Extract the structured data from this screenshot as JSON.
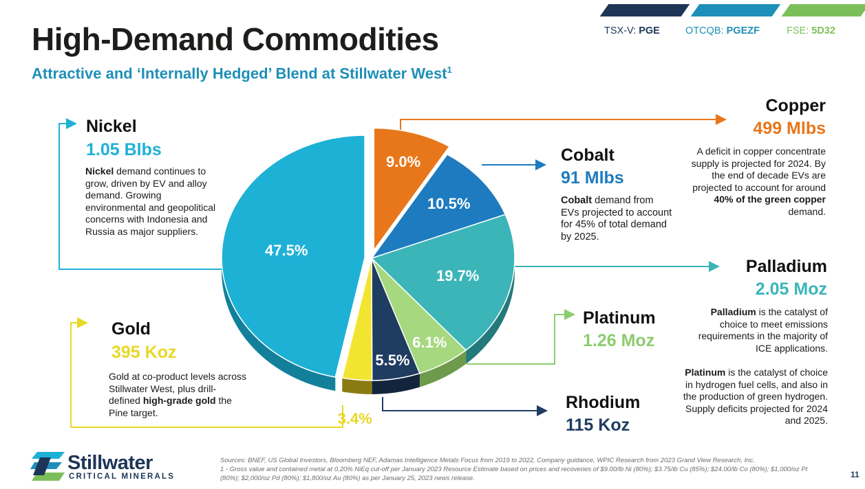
{
  "header": {
    "title": "High-Demand Commodities",
    "subtitle": "Attractive and ‘Internally Hedged’ Blend at Stillwater West",
    "subtitle_note": "1",
    "tickers": [
      {
        "exchange": "TSX-V:",
        "symbol": "PGE",
        "color": "#1d3557"
      },
      {
        "exchange": "OTCQB:",
        "symbol": "PGEZF",
        "color": "#1e8fb8"
      },
      {
        "exchange": "FSE:",
        "symbol": "5D32",
        "color": "#7cbf5a"
      }
    ]
  },
  "commodities": {
    "nickel": {
      "name": "Nickel",
      "value": "1.05 Blbs",
      "color": "#1eb1d6",
      "desc_bold": "Nickel",
      "desc": " demand continues to grow, driven by EV and alloy demand. Growing environmental and geopolitical concerns with Indonesia and Russia as major suppliers."
    },
    "copper": {
      "name": "Copper",
      "value": "499 Mlbs",
      "color": "#e8761a",
      "desc": "A deficit in copper concentrate supply is projected for 2024. By the end of decade EVs are projected to account for around ",
      "desc_bold": "40% of the green copper",
      "desc_end": " demand."
    },
    "cobalt": {
      "name": "Cobalt",
      "value": "91 Mlbs",
      "color": "#1e7bbf",
      "desc_bold": "Cobalt",
      "desc": " demand from EVs projected to account for 45% of total demand by 2025."
    },
    "palladium": {
      "name": "Palladium",
      "value": "2.05 Moz",
      "color": "#3bb5b8",
      "desc_bold": "Palladium",
      "desc": " is the catalyst of choice to meet emissions requirements in the majority of ICE applications."
    },
    "platinum": {
      "name": "Platinum",
      "value": "1.26 Moz",
      "color": "#8ccc6e",
      "desc_bold": "Platinum",
      "desc": " is the catalyst of choice in hydrogen fuel cells, and also in the production of green hydrogen. Supply deficits projected for 2024 and 2025."
    },
    "rhodium": {
      "name": "Rhodium",
      "value": "115 Koz",
      "color": "#1f3c61"
    },
    "gold": {
      "name": "Gold",
      "value": "395 Koz",
      "color": "#e8d826",
      "desc": "Gold at co-product levels across Stillwater West, plus drill-defined ",
      "desc_bold": "high-grade gold",
      "desc_end": " the Pine target."
    }
  },
  "chart_data": {
    "type": "pie",
    "title": "",
    "start_angle_deg": 0,
    "slices": [
      {
        "name": "Copper",
        "value": 9.0,
        "label": "9.0%",
        "color": "#e8761a",
        "side": "#9c4d10"
      },
      {
        "name": "Cobalt",
        "value": 10.5,
        "label": "10.5%",
        "color": "#1e7bbf",
        "side": "#134f7c"
      },
      {
        "name": "Palladium",
        "value": 19.7,
        "label": "19.7%",
        "color": "#3bb5b8",
        "side": "#24797b"
      },
      {
        "name": "Platinum",
        "value": 6.1,
        "label": "6.1%",
        "color": "#a6d87f",
        "side": "#6d9a4b"
      },
      {
        "name": "Rhodium",
        "value": 5.5,
        "label": "5.5%",
        "color": "#1f3c61",
        "side": "#12253d"
      },
      {
        "name": "Gold",
        "value": 3.4,
        "label": "3.4%",
        "color": "#f2e531",
        "side": "#8a7a12"
      },
      {
        "name": "Nickel",
        "value": 47.5,
        "label": "47.5%",
        "color": "#1eb1d6",
        "side": "#13809b"
      }
    ]
  },
  "footer": {
    "sources": "Sources: BNEF, US Global Investors, Bloomberg NEF, Adamas Intelligence Metals Focus from 2019 to 2022, Company guidance, WPIC Research from 2023 Grand View Research, Inc.",
    "note": "1 - Gross value and contained metal at 0.20% NiEq cut-off per January 2023 Resource Estimate based on prices and recoveries of $9.00/lb Ni (80%); $3.75/lb Cu (85%); $24.00/lb Co (80%); $1,000/oz Pt (80%); $2,000/oz Pd (80%); $1,800/oz Au (80%) as per January 25, 2023 news release.",
    "logo_word": "Stillwater",
    "logo_sub": "CRITICAL MINERALS",
    "page_number": "11"
  }
}
